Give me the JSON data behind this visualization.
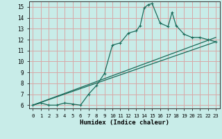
{
  "title": "",
  "xlabel": "Humidex (Indice chaleur)",
  "xlim": [
    -0.5,
    23.5
  ],
  "ylim": [
    5.7,
    15.5
  ],
  "xticks": [
    0,
    1,
    2,
    3,
    4,
    5,
    6,
    7,
    8,
    9,
    10,
    11,
    12,
    13,
    14,
    15,
    16,
    17,
    18,
    19,
    20,
    21,
    22,
    23
  ],
  "yticks": [
    6,
    7,
    8,
    9,
    10,
    11,
    12,
    13,
    14,
    15
  ],
  "bg_color": "#c8ece8",
  "grid_color": "#d8a8a8",
  "line_color": "#1a6b5a",
  "series1_x": [
    0,
    1,
    2,
    3,
    4,
    5,
    6,
    7,
    8,
    9,
    10,
    11,
    12,
    13,
    13.5,
    14,
    14.5,
    15,
    16,
    17,
    17.5,
    18,
    19,
    20,
    21,
    22,
    23
  ],
  "series1_y": [
    6.0,
    6.2,
    6.0,
    6.0,
    6.2,
    6.1,
    6.0,
    7.0,
    7.8,
    8.9,
    11.5,
    11.7,
    12.6,
    12.8,
    13.3,
    14.9,
    15.2,
    15.3,
    13.5,
    13.2,
    14.5,
    13.3,
    12.5,
    12.2,
    12.2,
    12.0,
    11.8
  ],
  "series2_x": [
    0,
    23
  ],
  "series2_y": [
    6.0,
    11.8
  ],
  "series3_x": [
    0,
    23
  ],
  "series3_y": [
    6.0,
    12.2
  ],
  "marker": "+"
}
